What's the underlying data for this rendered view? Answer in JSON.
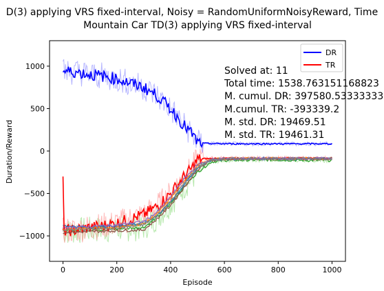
{
  "chart_data": {
    "type": "line",
    "title_line1": "D(3) applying VRS fixed-interval, Noisy = RandomUniformNoisyReward, Time",
    "title_line2": "Mountain Car TD(3) applying VRS fixed-interval",
    "xlabel": "Episode",
    "ylabel": "Duration/Reward",
    "xlim": [
      -50,
      1050
    ],
    "ylim": [
      -1300,
      1300
    ],
    "xticks": [
      0,
      200,
      400,
      600,
      800,
      1000
    ],
    "yticks": [
      -1000,
      -500,
      0,
      500,
      1000
    ],
    "xtick_labels": [
      "0",
      "200",
      "400",
      "600",
      "800",
      "1000"
    ],
    "ytick_labels": [
      "−1000",
      "−500",
      "0",
      "500",
      "1000"
    ],
    "grid": false,
    "legend": {
      "placement": "top-right",
      "entries": [
        {
          "label": "DR",
          "color": "#0000ff"
        },
        {
          "label": "TR",
          "color": "#ff0000"
        }
      ]
    },
    "annotations": [
      "Solved at: 11",
      "Total time: 1538.763151168823",
      "M. cumul. DR: 397580.53333333",
      "M.cumul. TR: -393339.2",
      "M. std. DR: 19469.51",
      "M. std. TR: 19461.31"
    ],
    "series": [
      {
        "name": "DR",
        "color": "#0000ff",
        "x": [
          0,
          50,
          100,
          150,
          200,
          250,
          300,
          350,
          400,
          450,
          480,
          500,
          520,
          600,
          700,
          800,
          900,
          1000
        ],
        "y": [
          940,
          930,
          900,
          880,
          850,
          800,
          750,
          650,
          500,
          300,
          200,
          100,
          90,
          85,
          85,
          85,
          85,
          85
        ]
      },
      {
        "name": "TR",
        "color": "#ff0000",
        "x": [
          0,
          50,
          100,
          150,
          200,
          250,
          300,
          350,
          400,
          450,
          480,
          500,
          520,
          600,
          700,
          800,
          900,
          1000
        ],
        "y": [
          -940,
          -930,
          -900,
          -880,
          -850,
          -800,
          -750,
          -650,
          -500,
          -300,
          -200,
          -100,
          -90,
          -85,
          -85,
          -85,
          -85,
          -85
        ]
      },
      {
        "color": "#2ca02c",
        "x": [
          0,
          100,
          200,
          300,
          350,
          400,
          450,
          500,
          550,
          600,
          700,
          800,
          900,
          1000
        ],
        "y": [
          -950,
          -930,
          -920,
          -900,
          -780,
          -620,
          -420,
          -250,
          -130,
          -110,
          -105,
          -105,
          -110,
          -110
        ]
      },
      {
        "color": "#1f77b4",
        "x": [
          0,
          100,
          200,
          300,
          350,
          400,
          450,
          500,
          550,
          600,
          700,
          800,
          900,
          1000
        ],
        "y": [
          -880,
          -900,
          -880,
          -850,
          -760,
          -600,
          -400,
          -200,
          -110,
          -95,
          -90,
          -90,
          -90,
          -90
        ]
      },
      {
        "color": "#ff7f0e",
        "x": [
          0,
          100,
          200,
          300,
          350,
          400,
          450,
          500,
          550,
          600,
          700,
          800,
          900,
          1000
        ],
        "y": [
          -920,
          -910,
          -900,
          -860,
          -740,
          -560,
          -350,
          -170,
          -100,
          -90,
          -88,
          -88,
          -88,
          -88
        ]
      },
      {
        "color": "#8c564b",
        "x": [
          0,
          100,
          200,
          300,
          350,
          400,
          450,
          500,
          550,
          600,
          700,
          800,
          900,
          1000
        ],
        "y": [
          -960,
          -950,
          -940,
          -930,
          -800,
          -640,
          -430,
          -220,
          -110,
          -95,
          -90,
          -90,
          -90,
          -90
        ]
      },
      {
        "color": "#9467bd",
        "x": [
          0,
          100,
          200,
          300,
          350,
          400,
          450,
          500,
          550,
          600,
          700,
          800,
          900,
          1000
        ],
        "y": [
          -900,
          -890,
          -870,
          -830,
          -720,
          -540,
          -330,
          -160,
          -100,
          -90,
          -88,
          -88,
          -88,
          -88
        ]
      },
      {
        "color": "#7f7f7f",
        "x": [
          0,
          100,
          200,
          300,
          350,
          400,
          450,
          500,
          550,
          600,
          700,
          800,
          900,
          1000
        ],
        "y": [
          -930,
          -920,
          -905,
          -870,
          -760,
          -590,
          -380,
          -190,
          -105,
          -92,
          -90,
          -90,
          -90,
          -90
        ]
      }
    ]
  }
}
